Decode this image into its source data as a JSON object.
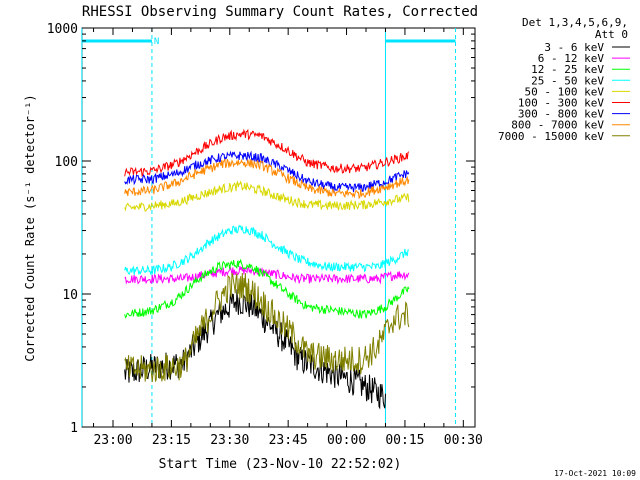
{
  "chart_data": {
    "type": "line",
    "title": "RHESSI Observing Summary Count Rates, Corrected",
    "xlabel": "Start Time (23-Nov-10 22:52:02)",
    "ylabel": "Corrected Count Rate (s⁻¹ detector⁻¹)",
    "yscale": "log",
    "ylim": [
      1,
      1000
    ],
    "xlim": [
      "22:52:02",
      "00:33:00"
    ],
    "x_ticks": [
      "23:00",
      "23:15",
      "23:30",
      "23:45",
      "00:00",
      "00:15",
      "00:30"
    ],
    "y_ticks": [
      "1",
      "10",
      "100",
      "1000"
    ],
    "data_start": "23:03",
    "data_end": "00:16",
    "legend_header": [
      "Det 1,3,4,5,6,9,",
      "Att 0"
    ],
    "legend_position": "right",
    "footer_date": "17-Oct-2021 10:09",
    "night_label": "N",
    "night_bars": [
      {
        "start": "22:52",
        "end": "23:10"
      },
      {
        "start": "00:10",
        "end": "00:28"
      }
    ],
    "vertical_lines": [
      {
        "time": "22:52",
        "style": "solid"
      },
      {
        "time": "23:10",
        "style": "dashed"
      },
      {
        "time": "00:10",
        "style": "solid"
      },
      {
        "time": "00:28",
        "style": "dashed"
      }
    ],
    "series": [
      {
        "name": "3 - 6 keV",
        "color": "#000000",
        "points": [
          [
            "23:03",
            2.5
          ],
          [
            "23:10",
            2.8
          ],
          [
            "23:18",
            3.0
          ],
          [
            "23:22",
            4.5
          ],
          [
            "23:27",
            7.0
          ],
          [
            "23:32",
            9.0
          ],
          [
            "23:36",
            8.0
          ],
          [
            "23:40",
            6.0
          ],
          [
            "23:44",
            4.5
          ],
          [
            "23:48",
            3.2
          ],
          [
            "23:55",
            2.6
          ],
          [
            "00:02",
            2.2
          ],
          [
            "00:08",
            1.8
          ],
          [
            "00:10",
            1.7
          ]
        ]
      },
      {
        "name": "6 - 12 keV",
        "color": "#ff00ff",
        "points": [
          [
            "23:03",
            13
          ],
          [
            "23:10",
            13
          ],
          [
            "23:18",
            13
          ],
          [
            "23:24",
            14
          ],
          [
            "23:30",
            15
          ],
          [
            "23:36",
            15
          ],
          [
            "23:42",
            14
          ],
          [
            "23:48",
            13
          ],
          [
            "23:55",
            13
          ],
          [
            "00:02",
            13
          ],
          [
            "00:08",
            13
          ],
          [
            "00:13",
            14
          ],
          [
            "00:16",
            14
          ]
        ]
      },
      {
        "name": "12 - 25 keV",
        "color": "#00ff00",
        "points": [
          [
            "23:03",
            7
          ],
          [
            "23:10",
            7.5
          ],
          [
            "23:16",
            9
          ],
          [
            "23:22",
            13
          ],
          [
            "23:27",
            16
          ],
          [
            "23:32",
            17
          ],
          [
            "23:36",
            16
          ],
          [
            "23:40",
            13
          ],
          [
            "23:45",
            10
          ],
          [
            "23:50",
            8
          ],
          [
            "23:57",
            7.5
          ],
          [
            "00:05",
            7
          ],
          [
            "00:10",
            8
          ],
          [
            "00:14",
            10
          ],
          [
            "00:16",
            11
          ]
        ]
      },
      {
        "name": "25 - 50 keV",
        "color": "#00ffff",
        "points": [
          [
            "23:03",
            15
          ],
          [
            "23:10",
            15
          ],
          [
            "23:15",
            16
          ],
          [
            "23:20",
            19
          ],
          [
            "23:25",
            25
          ],
          [
            "23:30",
            30
          ],
          [
            "23:34",
            31
          ],
          [
            "23:38",
            28
          ],
          [
            "23:43",
            22
          ],
          [
            "23:48",
            18
          ],
          [
            "23:55",
            16
          ],
          [
            "00:02",
            16
          ],
          [
            "00:08",
            16
          ],
          [
            "00:12",
            18
          ],
          [
            "00:16",
            21
          ]
        ]
      },
      {
        "name": "50 - 100 keV",
        "color": "#d8d800",
        "points": [
          [
            "23:03",
            44
          ],
          [
            "23:10",
            46
          ],
          [
            "23:16",
            48
          ],
          [
            "23:22",
            55
          ],
          [
            "23:28",
            62
          ],
          [
            "23:33",
            65
          ],
          [
            "23:38",
            60
          ],
          [
            "23:44",
            52
          ],
          [
            "23:50",
            47
          ],
          [
            "23:58",
            46
          ],
          [
            "00:05",
            47
          ],
          [
            "00:10",
            50
          ],
          [
            "00:16",
            53
          ]
        ]
      },
      {
        "name": "100 - 300 keV",
        "color": "#ff0000",
        "points": [
          [
            "23:03",
            82
          ],
          [
            "23:10",
            84
          ],
          [
            "23:16",
            95
          ],
          [
            "23:22",
            120
          ],
          [
            "23:28",
            150
          ],
          [
            "23:33",
            160
          ],
          [
            "23:38",
            155
          ],
          [
            "23:44",
            125
          ],
          [
            "23:50",
            97
          ],
          [
            "23:57",
            88
          ],
          [
            "00:04",
            88
          ],
          [
            "00:10",
            98
          ],
          [
            "00:16",
            110
          ]
        ]
      },
      {
        "name": "300 - 800 keV",
        "color": "#0000ff",
        "points": [
          [
            "23:03",
            72
          ],
          [
            "23:10",
            73
          ],
          [
            "23:16",
            80
          ],
          [
            "23:22",
            95
          ],
          [
            "23:28",
            107
          ],
          [
            "23:33",
            110
          ],
          [
            "23:38",
            105
          ],
          [
            "23:44",
            88
          ],
          [
            "23:50",
            70
          ],
          [
            "23:57",
            63
          ],
          [
            "00:04",
            63
          ],
          [
            "00:10",
            70
          ],
          [
            "00:16",
            82
          ]
        ]
      },
      {
        "name": "800 - 7000 keV",
        "color": "#ff8800",
        "points": [
          [
            "23:03",
            58
          ],
          [
            "23:10",
            60
          ],
          [
            "23:16",
            68
          ],
          [
            "23:22",
            82
          ],
          [
            "23:28",
            95
          ],
          [
            "23:33",
            98
          ],
          [
            "23:38",
            93
          ],
          [
            "23:44",
            77
          ],
          [
            "23:50",
            62
          ],
          [
            "23:57",
            57
          ],
          [
            "00:04",
            57
          ],
          [
            "00:10",
            64
          ],
          [
            "00:16",
            72
          ]
        ]
      },
      {
        "name": "7000 - 15000 keV",
        "color": "#808000",
        "points": [
          [
            "23:03",
            2.7
          ],
          [
            "23:10",
            2.7
          ],
          [
            "23:18",
            2.9
          ],
          [
            "23:22",
            5
          ],
          [
            "23:26",
            8
          ],
          [
            "23:30",
            11.5
          ],
          [
            "23:34",
            11.5
          ],
          [
            "23:38",
            9
          ],
          [
            "23:42",
            6.5
          ],
          [
            "23:46",
            5
          ],
          [
            "23:50",
            3.5
          ],
          [
            "23:57",
            3.2
          ],
          [
            "00:04",
            3.2
          ],
          [
            "00:08",
            4
          ],
          [
            "00:12",
            6.5
          ],
          [
            "00:16",
            7
          ]
        ]
      }
    ]
  }
}
